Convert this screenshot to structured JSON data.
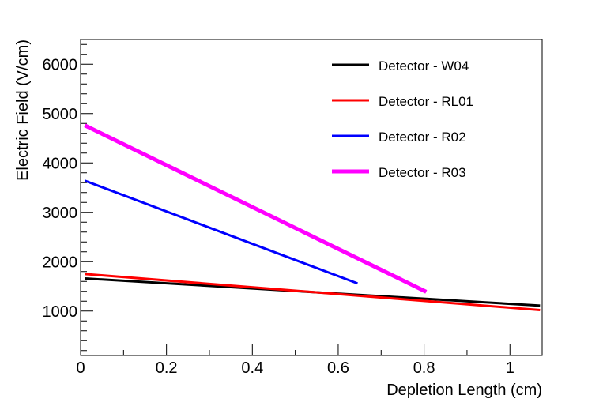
{
  "chart_data": {
    "type": "line",
    "title": "",
    "xlabel": "Depletion Length (cm)",
    "ylabel": "Electric Field (V/cm)",
    "xlim": [
      0,
      1.075
    ],
    "ylim": [
      100,
      6500
    ],
    "xticks": [
      0,
      0.2,
      0.4,
      0.6,
      0.8,
      1
    ],
    "xtick_labels": [
      "0",
      "0.2",
      "0.4",
      "0.6",
      "0.8",
      "1"
    ],
    "yticks": [
      1000,
      2000,
      3000,
      4000,
      5000,
      6000
    ],
    "ytick_labels": [
      "1000",
      "2000",
      "3000",
      "4000",
      "5000",
      "6000"
    ],
    "legend_position": "top-right",
    "series": [
      {
        "name": "Detector - W04",
        "color": "#000000",
        "width": 3,
        "x": [
          0.01,
          1.07
        ],
        "y": [
          1660,
          1110
        ]
      },
      {
        "name": "Detector - RL01",
        "color": "#ff0000",
        "width": 3,
        "x": [
          0.01,
          1.07
        ],
        "y": [
          1750,
          1020
        ]
      },
      {
        "name": "Detector - R02",
        "color": "#0000ff",
        "width": 3,
        "x": [
          0.01,
          0.645
        ],
        "y": [
          3640,
          1560
        ]
      },
      {
        "name": "Detector - R03",
        "color": "#ff00ff",
        "width": 5,
        "x": [
          0.01,
          0.805
        ],
        "y": [
          4760,
          1390
        ]
      }
    ]
  }
}
